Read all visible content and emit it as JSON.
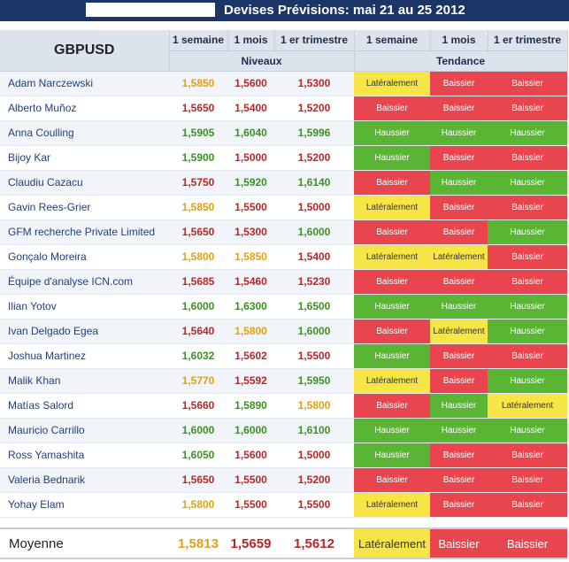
{
  "title": "Devises Prévisions: mai 21 au 25 2012",
  "pair": "GBPUSD",
  "period_headers": [
    "1 semaine",
    "1 mois",
    "1 er trimestre"
  ],
  "group_levels": "Niveaux",
  "group_trend": "Tendance",
  "colors": {
    "header_bg": "#1a3566",
    "bear": "#e8454e",
    "bull": "#5ab534",
    "side": "#f7e546",
    "num_bear": "#b52828",
    "num_bull": "#3a9122",
    "num_side": "#e0a012"
  },
  "rows": [
    {
      "name": "Adam Narczewski",
      "levels": [
        "1,5850",
        "1,5600",
        "1,5300"
      ],
      "trends": [
        "Latéralement",
        "Baissier",
        "Baissier"
      ]
    },
    {
      "name": "Alberto Muñoz",
      "levels": [
        "1,5650",
        "1,5400",
        "1,5200"
      ],
      "trends": [
        "Baissier",
        "Baissier",
        "Baissier"
      ]
    },
    {
      "name": "Anna Coulling",
      "levels": [
        "1,5905",
        "1,6040",
        "1,5996"
      ],
      "trends": [
        "Haussier",
        "Haussier",
        "Haussier"
      ]
    },
    {
      "name": "Bijoy Kar",
      "levels": [
        "1,5900",
        "1,5000",
        "1,5200"
      ],
      "trends": [
        "Haussier",
        "Baissier",
        "Baissier"
      ]
    },
    {
      "name": "Claudiu Cazacu",
      "levels": [
        "1,5750",
        "1,5920",
        "1,6140"
      ],
      "trends": [
        "Baissier",
        "Haussier",
        "Haussier"
      ]
    },
    {
      "name": "Gavin Rees-Grier",
      "levels": [
        "1,5850",
        "1,5500",
        "1,5000"
      ],
      "trends": [
        "Latéralement",
        "Baissier",
        "Baissier"
      ]
    },
    {
      "name": "GFM recherche Private Limited",
      "levels": [
        "1,5650",
        "1,5300",
        "1,6000"
      ],
      "trends": [
        "Baissier",
        "Baissier",
        "Haussier"
      ]
    },
    {
      "name": "Gonçalo Moreira",
      "levels": [
        "1,5800",
        "1,5850",
        "1,5400"
      ],
      "trends": [
        "Latéralement",
        "Latéralement",
        "Baissier"
      ]
    },
    {
      "name": "Équipe d'analyse ICN.com",
      "levels": [
        "1,5685",
        "1,5460",
        "1,5230"
      ],
      "trends": [
        "Baissier",
        "Baissier",
        "Baissier"
      ]
    },
    {
      "name": "Ilian Yotov",
      "levels": [
        "1,6000",
        "1,6300",
        "1,6500"
      ],
      "trends": [
        "Haussier",
        "Haussier",
        "Haussier"
      ]
    },
    {
      "name": "Ivan Delgado Egea",
      "levels": [
        "1,5640",
        "1,5800",
        "1,6000"
      ],
      "trends": [
        "Baissier",
        "Latéralement",
        "Haussier"
      ]
    },
    {
      "name": "Joshua Martinez",
      "levels": [
        "1,6032",
        "1,5602",
        "1,5500"
      ],
      "trends": [
        "Haussier",
        "Baissier",
        "Baissier"
      ]
    },
    {
      "name": "Malik Khan",
      "levels": [
        "1,5770",
        "1,5592",
        "1,5950"
      ],
      "trends": [
        "Latéralement",
        "Baissier",
        "Haussier"
      ]
    },
    {
      "name": "Matías Salord",
      "levels": [
        "1,5660",
        "1,5890",
        "1,5800"
      ],
      "trends": [
        "Baissier",
        "Haussier",
        "Latéralement"
      ]
    },
    {
      "name": "Mauricio Carrillo",
      "levels": [
        "1,6000",
        "1,6000",
        "1,6100"
      ],
      "trends": [
        "Haussier",
        "Haussier",
        "Haussier"
      ]
    },
    {
      "name": "Ross Yamashita",
      "levels": [
        "1,6050",
        "1,5600",
        "1,5000"
      ],
      "trends": [
        "Haussier",
        "Baissier",
        "Baissier"
      ]
    },
    {
      "name": "Valeria Bednarik",
      "levels": [
        "1,5650",
        "1,5500",
        "1,5200"
      ],
      "trends": [
        "Baissier",
        "Baissier",
        "Baissier"
      ]
    },
    {
      "name": "Yohay Elam",
      "levels": [
        "1,5800",
        "1,5500",
        "1,5500"
      ],
      "trends": [
        "Latéralement",
        "Baissier",
        "Baissier"
      ]
    }
  ],
  "average": {
    "label": "Moyenne",
    "levels": [
      "1,5813",
      "1,5659",
      "1,5612"
    ],
    "trends": [
      "Latéralement",
      "Baissier",
      "Baissier"
    ]
  }
}
